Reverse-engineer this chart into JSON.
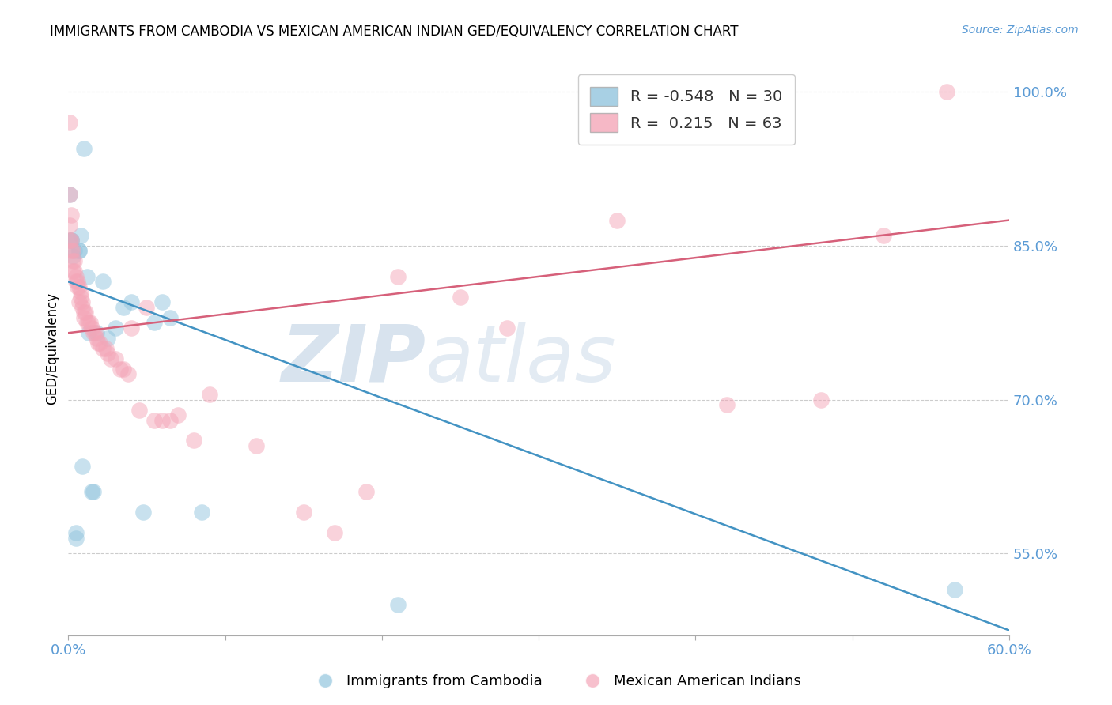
{
  "title": "IMMIGRANTS FROM CAMBODIA VS MEXICAN AMERICAN INDIAN GED/EQUIVALENCY CORRELATION CHART",
  "source": "Source: ZipAtlas.com",
  "ylabel": "GED/Equivalency",
  "xlim": [
    0.0,
    0.6
  ],
  "ylim": [
    0.47,
    1.03
  ],
  "xticks": [
    0.0,
    0.1,
    0.2,
    0.3,
    0.4,
    0.5,
    0.6
  ],
  "xticklabels": [
    "0.0%",
    "",
    "",
    "",
    "",
    "",
    "60.0%"
  ],
  "yticks_right": [
    0.55,
    0.7,
    0.85,
    1.0
  ],
  "ytick_right_labels": [
    "55.0%",
    "70.0%",
    "85.0%",
    "100.0%"
  ],
  "blue_R": -0.548,
  "blue_N": 30,
  "pink_R": 0.215,
  "pink_N": 63,
  "blue_color": "#92c5de",
  "pink_color": "#f4a6b8",
  "blue_line_color": "#4393c3",
  "pink_line_color": "#d6607a",
  "watermark_zip": "ZIP",
  "watermark_atlas": "atlas",
  "legend_blue_label": "Immigrants from Cambodia",
  "legend_pink_label": "Mexican American Indians",
  "blue_line_x0": 0.0,
  "blue_line_y0": 0.815,
  "blue_line_x1": 0.6,
  "blue_line_y1": 0.475,
  "pink_line_x0": 0.0,
  "pink_line_y0": 0.765,
  "pink_line_x1": 0.6,
  "pink_line_y1": 0.875,
  "blue_points_x": [
    0.001,
    0.001,
    0.002,
    0.002,
    0.003,
    0.004,
    0.005,
    0.005,
    0.007,
    0.007,
    0.008,
    0.009,
    0.01,
    0.012,
    0.013,
    0.015,
    0.016,
    0.018,
    0.022,
    0.025,
    0.03,
    0.035,
    0.04,
    0.048,
    0.055,
    0.06,
    0.065,
    0.085,
    0.21,
    0.565
  ],
  "blue_points_y": [
    0.9,
    0.855,
    0.855,
    0.855,
    0.84,
    0.845,
    0.565,
    0.57,
    0.845,
    0.845,
    0.86,
    0.635,
    0.945,
    0.82,
    0.765,
    0.61,
    0.61,
    0.765,
    0.815,
    0.76,
    0.77,
    0.79,
    0.795,
    0.59,
    0.775,
    0.795,
    0.78,
    0.59,
    0.5,
    0.515
  ],
  "pink_points_x": [
    0.001,
    0.001,
    0.001,
    0.001,
    0.002,
    0.002,
    0.002,
    0.003,
    0.003,
    0.003,
    0.004,
    0.004,
    0.005,
    0.005,
    0.006,
    0.006,
    0.007,
    0.007,
    0.008,
    0.008,
    0.009,
    0.009,
    0.01,
    0.01,
    0.011,
    0.012,
    0.013,
    0.014,
    0.015,
    0.016,
    0.017,
    0.018,
    0.019,
    0.02,
    0.022,
    0.024,
    0.025,
    0.027,
    0.03,
    0.033,
    0.035,
    0.038,
    0.04,
    0.045,
    0.05,
    0.055,
    0.06,
    0.065,
    0.07,
    0.08,
    0.09,
    0.12,
    0.15,
    0.17,
    0.19,
    0.21,
    0.25,
    0.28,
    0.35,
    0.42,
    0.48,
    0.52,
    0.56
  ],
  "pink_points_y": [
    0.97,
    0.9,
    0.87,
    0.855,
    0.88,
    0.855,
    0.845,
    0.845,
    0.835,
    0.825,
    0.835,
    0.825,
    0.82,
    0.815,
    0.815,
    0.81,
    0.81,
    0.795,
    0.805,
    0.8,
    0.79,
    0.795,
    0.785,
    0.78,
    0.785,
    0.775,
    0.775,
    0.775,
    0.77,
    0.765,
    0.765,
    0.76,
    0.755,
    0.755,
    0.75,
    0.75,
    0.745,
    0.74,
    0.74,
    0.73,
    0.73,
    0.725,
    0.77,
    0.69,
    0.79,
    0.68,
    0.68,
    0.68,
    0.685,
    0.66,
    0.705,
    0.655,
    0.59,
    0.57,
    0.61,
    0.82,
    0.8,
    0.77,
    0.875,
    0.695,
    0.7,
    0.86,
    1.0
  ]
}
